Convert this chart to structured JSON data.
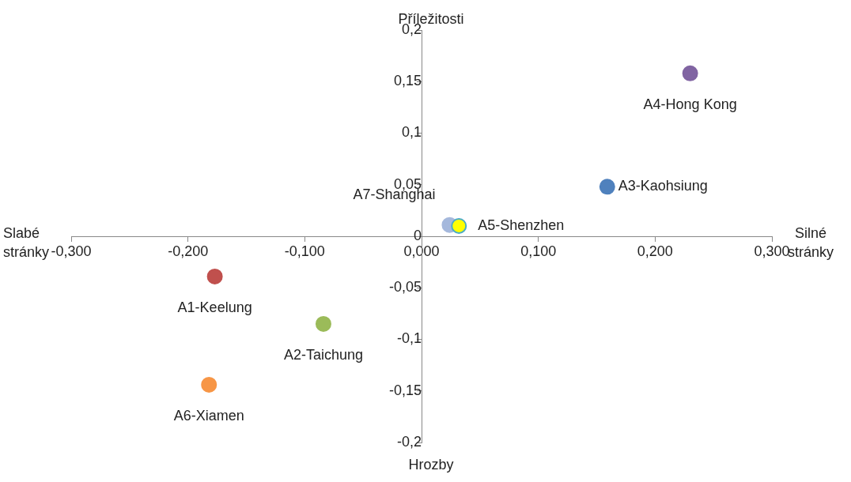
{
  "chart_data": {
    "type": "scatter",
    "xlabel": "Silné stránky",
    "ylabel": "Příležitosti",
    "annotations": [
      "Slabé stránky",
      "Hrozby"
    ],
    "xlim": [
      -0.3,
      0.3
    ],
    "xticks": [
      {
        "value": -0.3,
        "label": "-0,300"
      },
      {
        "value": -0.2,
        "label": "-0,200"
      },
      {
        "value": -0.1,
        "label": "-0,100"
      },
      {
        "value": 0,
        "label": "0,000"
      },
      {
        "value": 0.1,
        "label": "0,100"
      },
      {
        "value": 0.2,
        "label": "0,200"
      },
      {
        "value": 0.3,
        "label": "0,300"
      }
    ],
    "ylim": [
      -0.2,
      0.2
    ],
    "yticks": [
      {
        "value": -0.2,
        "label": "-0,2"
      },
      {
        "value": -0.15,
        "label": "-0,15"
      },
      {
        "value": -0.1,
        "label": "-0,1"
      },
      {
        "value": -0.05,
        "label": "-0,05"
      },
      0,
      {
        "value": 0.05,
        "label": "0,05"
      },
      {
        "value": 0.1,
        "label": "0,1"
      },
      {
        "value": 0.15,
        "label": "0,15"
      },
      {
        "value": 0.2,
        "label": "0,2"
      }
    ],
    "grid": false,
    "legend": false,
    "marker": "circle",
    "series": [
      {
        "name": "A1-Keelung",
        "color": "#c0504d",
        "x": [
          -0.177
        ],
        "values": [
          -0.039
        ]
      },
      {
        "name": "A2-Taichung",
        "color": "#9bbb59",
        "x": [
          -0.084
        ],
        "values": [
          -0.085
        ]
      },
      {
        "name": "A3-Kaohsiung",
        "color": "#4f81bd",
        "x": [
          0.159
        ],
        "values": [
          0.048
        ]
      },
      {
        "name": "A4-Hong Kong",
        "color": "#8064a2",
        "x": [
          0.23
        ],
        "values": [
          0.158
        ]
      },
      {
        "name": "A5-Shenzhen",
        "color": "#ffff00",
        "x": [
          0.032
        ],
        "values": [
          0.01
        ]
      },
      {
        "name": "A6-Xiamen",
        "color": "#f79646",
        "x": [
          -0.182
        ],
        "values": [
          -0.144
        ]
      },
      {
        "name": "A7-Shanghai",
        "color": "#a5b8dc",
        "x": [
          0.024
        ],
        "values": [
          0.011
        ]
      }
    ]
  }
}
